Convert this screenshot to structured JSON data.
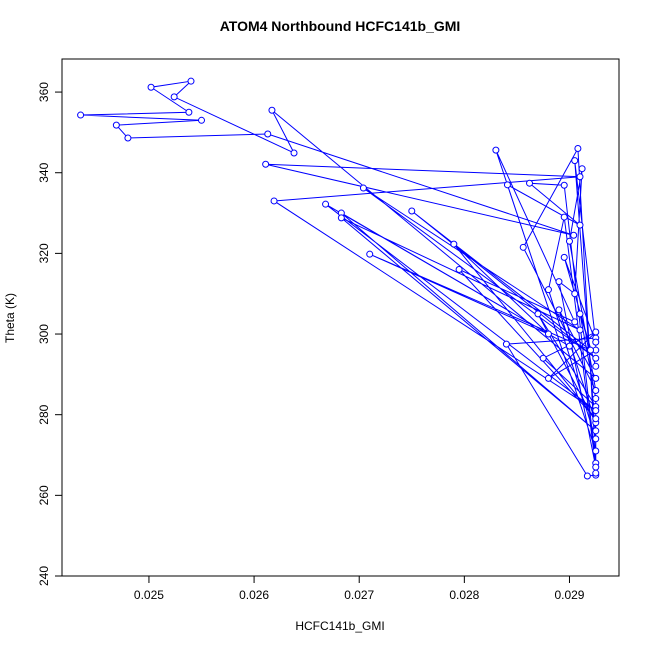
{
  "chart_data": {
    "type": "line",
    "title": "ATOM4 Northbound HCFC141b_GMI",
    "x_label": "HCFC141b_GMI",
    "y_label": "Theta (K)",
    "color": "#0000ff",
    "markers": true,
    "xlim": [
      0.024173,
      0.029471
    ],
    "ylim": [
      240,
      368.2
    ],
    "xticks": [
      0.025,
      0.026,
      0.027,
      0.028,
      0.029
    ],
    "yticks": [
      240,
      260,
      280,
      300,
      320,
      340,
      360
    ],
    "x": [
      0.02925,
      0.02917,
      0.0284,
      0.02925,
      0.02925,
      0.0288,
      0.02925,
      0.02875,
      0.02925,
      0.0287,
      0.02925,
      0.0289,
      0.02925,
      0.02617,
      0.02638,
      0.02524,
      0.0254,
      0.02502,
      0.02538,
      0.02435,
      0.0255,
      0.02469,
      0.0248,
      0.02613,
      0.02904,
      0.02611,
      0.0291,
      0.02619,
      0.02925,
      0.02668,
      0.029,
      0.02683,
      0.02925,
      0.02683,
      0.0291,
      0.02704,
      0.02925,
      0.0275,
      0.0292,
      0.0271,
      0.0288,
      0.0279,
      0.02925,
      0.02795,
      0.02905,
      0.0283,
      0.02925,
      0.02841,
      0.0291,
      0.02862,
      0.02895,
      0.02925,
      0.02908,
      0.02856,
      0.02925,
      0.029,
      0.02912,
      0.02905,
      0.0289,
      0.02925,
      0.02895,
      0.0288,
      0.02925,
      0.02905,
      0.02925,
      0.02895,
      0.02925,
      0.0291,
      0.02925,
      0.02925
    ],
    "y": [
      265.0,
      264.8,
      297.5,
      299.0,
      296.0,
      289.0,
      300.5,
      294.0,
      282.0,
      305.0,
      278.0,
      306.0,
      289.0,
      355.5,
      344.9,
      358.8,
      362.7,
      361.2,
      355.0,
      354.3,
      353.0,
      351.8,
      348.6,
      349.6,
      324.5,
      342.1,
      339.0,
      333.0,
      281.0,
      332.2,
      297.0,
      330.0,
      276.0,
      328.8,
      301.0,
      336.2,
      294.0,
      330.5,
      296.0,
      319.8,
      300.0,
      322.3,
      279.0,
      316.0,
      303.0,
      345.6,
      271.0,
      337.0,
      327.0,
      337.4,
      336.9,
      268.0,
      346.0,
      321.5,
      286.0,
      323.0,
      341.0,
      310.0,
      313.0,
      267.0,
      329.0,
      311.0,
      274.0,
      343.0,
      298.0,
      319.0,
      292.0,
      305.0,
      284.0,
      265.5
    ]
  }
}
